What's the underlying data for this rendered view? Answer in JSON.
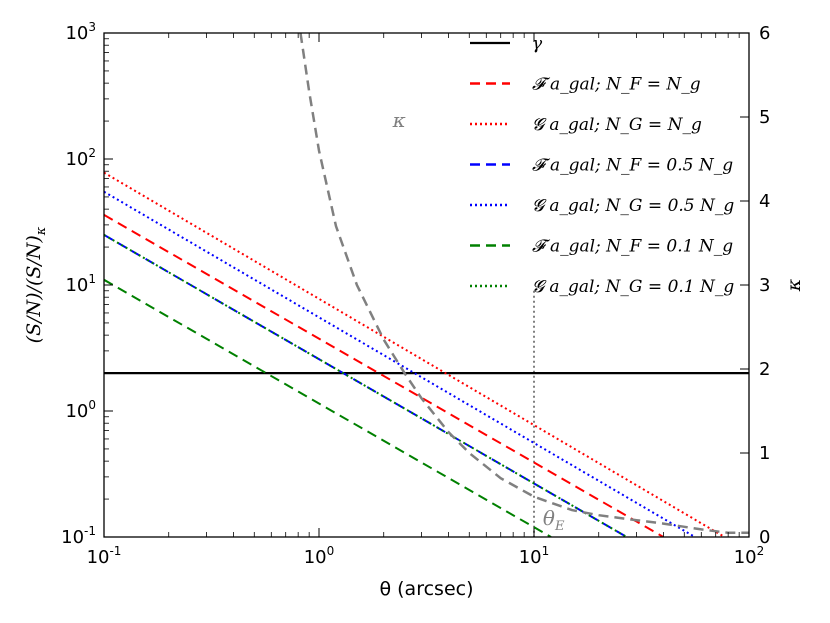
{
  "chart_data": {
    "type": "line",
    "xlabel": "θ (arcsec)",
    "ylabel_left": "(S/N)/(S/N)_κ",
    "ylabel_right": "κ",
    "xscale": "log",
    "yscale_left": "log",
    "xlim": [
      0.1,
      100
    ],
    "ylim_left": [
      0.1,
      1000
    ],
    "ylim_right": [
      0,
      6
    ],
    "x_ticks": [
      {
        "value": 0.1,
        "base": "10",
        "exp": "-1"
      },
      {
        "value": 1,
        "base": "10",
        "exp": "0"
      },
      {
        "value": 10,
        "base": "10",
        "exp": "1"
      },
      {
        "value": 100,
        "base": "10",
        "exp": "2"
      }
    ],
    "y_ticks_left": [
      {
        "value": 0.1,
        "base": "10",
        "exp": "-1"
      },
      {
        "value": 1,
        "base": "10",
        "exp": "0"
      },
      {
        "value": 10,
        "base": "10",
        "exp": "1"
      },
      {
        "value": 100,
        "base": "10",
        "exp": "2"
      },
      {
        "value": 1000,
        "base": "10",
        "exp": "3"
      }
    ],
    "y_ticks_right": [
      "0",
      "1",
      "2",
      "3",
      "4",
      "5",
      "6"
    ],
    "legend_position": "top-right",
    "series": [
      {
        "name": "γ",
        "color": "#000000",
        "style": "solid",
        "axis": "left",
        "x": [
          0.1,
          100
        ],
        "y": [
          2,
          2
        ]
      },
      {
        "name": "𝓕 a_gal; N_F = N_g",
        "color": "#ff0000",
        "style": "dashed",
        "axis": "left",
        "x": [
          0.1,
          40
        ],
        "y": [
          36,
          0.1
        ]
      },
      {
        "name": "𝓖 a_gal; N_G = N_g",
        "color": "#ff0000",
        "style": "dotted",
        "axis": "left",
        "x": [
          0.1,
          77
        ],
        "y": [
          78,
          0.1
        ]
      },
      {
        "name": "𝓕 a_gal; N_F = 0.5 N_g",
        "color": "#0000ff",
        "style": "dashed",
        "axis": "left",
        "x": [
          0.1,
          27
        ],
        "y": [
          25,
          0.1
        ]
      },
      {
        "name": "𝓖 a_gal; N_G = 0.5 N_g",
        "color": "#0000ff",
        "style": "dotted",
        "axis": "left",
        "x": [
          0.1,
          56
        ],
        "y": [
          55,
          0.1
        ]
      },
      {
        "name": "𝓕 a_gal; N_F = 0.1 N_g",
        "color": "#008000",
        "style": "dashed",
        "axis": "left",
        "x": [
          0.1,
          12
        ],
        "y": [
          11,
          0.1
        ]
      },
      {
        "name": "𝓖 a_gal; N_G = 0.1 N_g",
        "color": "#008000",
        "style": "dotted",
        "axis": "left",
        "x": [
          0.1,
          27
        ],
        "y": [
          25,
          0.1
        ]
      }
    ],
    "kappa_curve": {
      "color": "#808080",
      "style": "dashed",
      "axis": "right",
      "x": [
        0.82,
        0.9,
        1.0,
        1.2,
        1.5,
        2.0,
        2.5,
        3.0,
        4.0,
        5.0,
        7.0,
        10.0,
        15.0,
        20.0,
        30.0,
        40.0,
        60.0,
        80.0,
        100.0
      ],
      "y": [
        6.0,
        5.3,
        4.6,
        3.7,
        3.0,
        2.35,
        1.95,
        1.65,
        1.25,
        1.0,
        0.7,
        0.48,
        0.32,
        0.26,
        0.2,
        0.16,
        0.09,
        0.05,
        0.05
      ]
    },
    "theta_E": {
      "x": 10,
      "ymax_left": 9,
      "color": "#808080",
      "style": "dotted"
    },
    "annotations": [
      {
        "text": "κ",
        "x": 2.2,
        "y": 180,
        "color": "#808080"
      },
      {
        "text_base": "θ",
        "text_sub": "E",
        "x": 11,
        "y": 0.125,
        "color": "#808080"
      }
    ]
  }
}
